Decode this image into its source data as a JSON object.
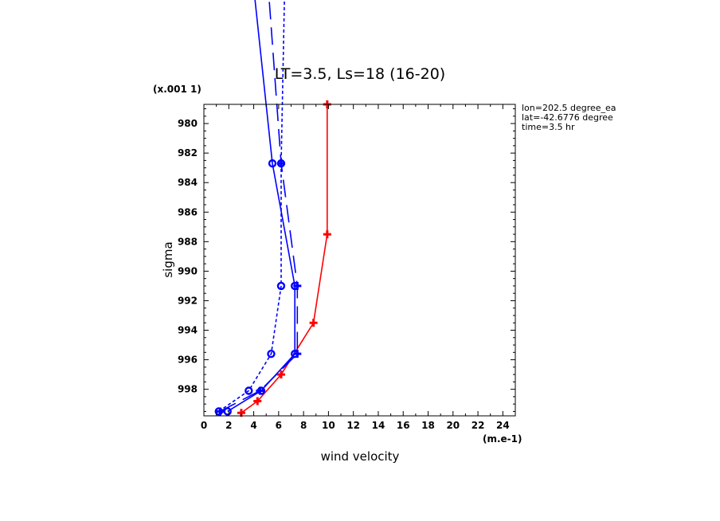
{
  "chart_data": {
    "type": "line",
    "title": "LT=3.5, Ls=18 (16-20)",
    "xlabel": "wind velocity",
    "ylabel": "sigma",
    "x_unit": "(m.e-1)",
    "y_unit": "(x.001 1)",
    "xlim": [
      0,
      25
    ],
    "ylim": [
      999.8,
      978.7
    ],
    "x_ticks": [
      "0",
      "2",
      "4",
      "6",
      "8",
      "10",
      "12",
      "14",
      "16",
      "18",
      "20",
      "22",
      "24"
    ],
    "y_ticks": [
      "980",
      "982",
      "984",
      "986",
      "988",
      "990",
      "992",
      "994",
      "996",
      "998"
    ],
    "annotations": [
      "lon=202.5 degree_ea",
      "lat=-42.6776 degree",
      "time=3.5 hr"
    ],
    "series": [
      {
        "color": "#ff0000",
        "dash": "solid",
        "marker": "plus",
        "x": [
          3.0,
          4.3,
          6.2,
          8.8,
          9.9,
          9.9
        ],
        "y": [
          999.6,
          998.8,
          997.0,
          993.5,
          987.5,
          978.7
        ]
      },
      {
        "color": "#0000ff",
        "dash": "solid",
        "marker": "circle",
        "x": [
          1.9,
          4.6,
          7.3,
          7.3,
          5.5,
          3.9
        ],
        "y": [
          999.5,
          998.1,
          995.6,
          991.0,
          982.7,
          970.0
        ]
      },
      {
        "color": "#0000ff",
        "dash": "long",
        "marker": "plus",
        "x": [
          1.3,
          4.5,
          7.5,
          7.5,
          6.2,
          5.1
        ],
        "y": [
          999.5,
          998.1,
          995.6,
          991.0,
          982.7,
          970.0
        ]
      },
      {
        "color": "#0000ff",
        "dash": "short",
        "marker": "circle",
        "x": [
          1.2,
          3.6,
          5.4,
          6.2,
          6.2,
          6.5
        ],
        "y": [
          999.5,
          998.1,
          995.6,
          991.0,
          982.7,
          970.0
        ]
      }
    ]
  }
}
